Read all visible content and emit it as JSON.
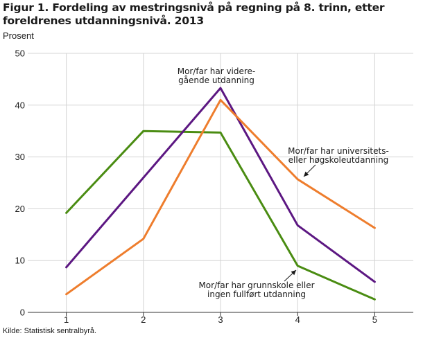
{
  "header": {
    "title": "Figur 1. Fordeling av mestringsnivå på regning på 8. trinn, etter foreldrenes utdanningsnivå. 2013",
    "unit_label": "Prosent"
  },
  "footer": {
    "source": "Kilde: Statistisk sentralbyrå."
  },
  "colors": {
    "green": "#4a8c12",
    "purple": "#5c1782",
    "orange": "#ee7d2d",
    "grid": "#d4d4d4",
    "axis": "#333333"
  },
  "chart_data": {
    "type": "line",
    "title": "Figur 1. Fordeling av mestringsnivå på regning på 8. trinn, etter foreldrenes utdanningsnivå. 2013",
    "xlabel": "",
    "ylabel": "Prosent",
    "x": [
      1,
      2,
      3,
      4,
      5
    ],
    "x_tick_labels": [
      "1",
      "2",
      "3",
      "4",
      "5"
    ],
    "y_ticks": [
      0,
      10,
      20,
      30,
      40,
      50
    ],
    "y_tick_labels": [
      "0",
      "10",
      "20",
      "30",
      "40",
      "50"
    ],
    "ylim": [
      0,
      50
    ],
    "grid": true,
    "series": [
      {
        "name": "Mor/far har grunnskole eller ingen fullført utdanning",
        "color": "#4a8c12",
        "values": [
          19.2,
          35.0,
          34.7,
          9.0,
          2.5
        ]
      },
      {
        "name": "Mor/far har videregående utdanning",
        "color": "#5c1782",
        "values": [
          8.7,
          26.0,
          43.3,
          16.8,
          5.9
        ]
      },
      {
        "name": "Mor/far har universitets- eller høgskoleutdanning",
        "color": "#ee7d2d",
        "values": [
          3.5,
          14.2,
          41.0,
          25.7,
          16.3
        ]
      }
    ],
    "annotations": [
      {
        "lines": [
          "Mor/far har videre-",
          "gående utdanning"
        ],
        "series": "Mor/far har videregående utdanning"
      },
      {
        "lines": [
          "Mor/far har universitets-",
          "eller høgskoleutdanning"
        ],
        "series": "Mor/far har universitets- eller høgskoleutdanning"
      },
      {
        "lines": [
          "Mor/far har grunnskole eller",
          "ingen fullført utdanning"
        ],
        "series": "Mor/far har grunnskole eller ingen fullført utdanning"
      }
    ]
  }
}
